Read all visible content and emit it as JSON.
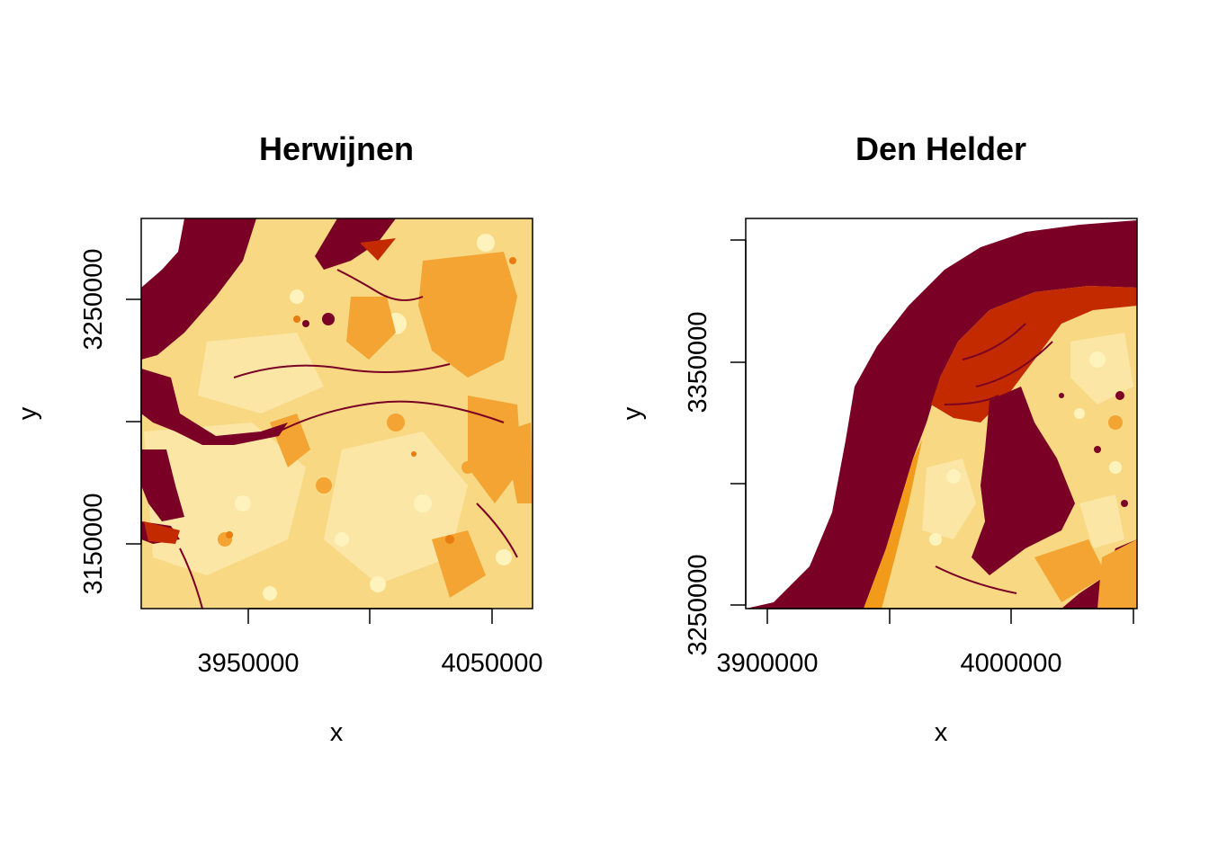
{
  "colors": {
    "water": "#7a0025",
    "marsh": "#c42a00",
    "dark_orange": "#ee7d00",
    "orange": "#f7a51e",
    "tan": "#f8cd6c",
    "light": "#fbe39d",
    "pale": "#fff8c2",
    "nodata": "#ffffff"
  },
  "maps": [
    {
      "title": "Herwijnen",
      "xlabel": "x",
      "ylabel": "y",
      "xticks": [
        "3950000",
        "4050000"
      ],
      "yticks": [
        "3150000",
        "3250000"
      ],
      "legend": "none"
    },
    {
      "title": "Den Helder",
      "xlabel": "x",
      "ylabel": "y",
      "xticks": [
        "3900000",
        "4000000"
      ],
      "yticks": [
        "3250000",
        "3350000"
      ],
      "legend": "none"
    }
  ]
}
